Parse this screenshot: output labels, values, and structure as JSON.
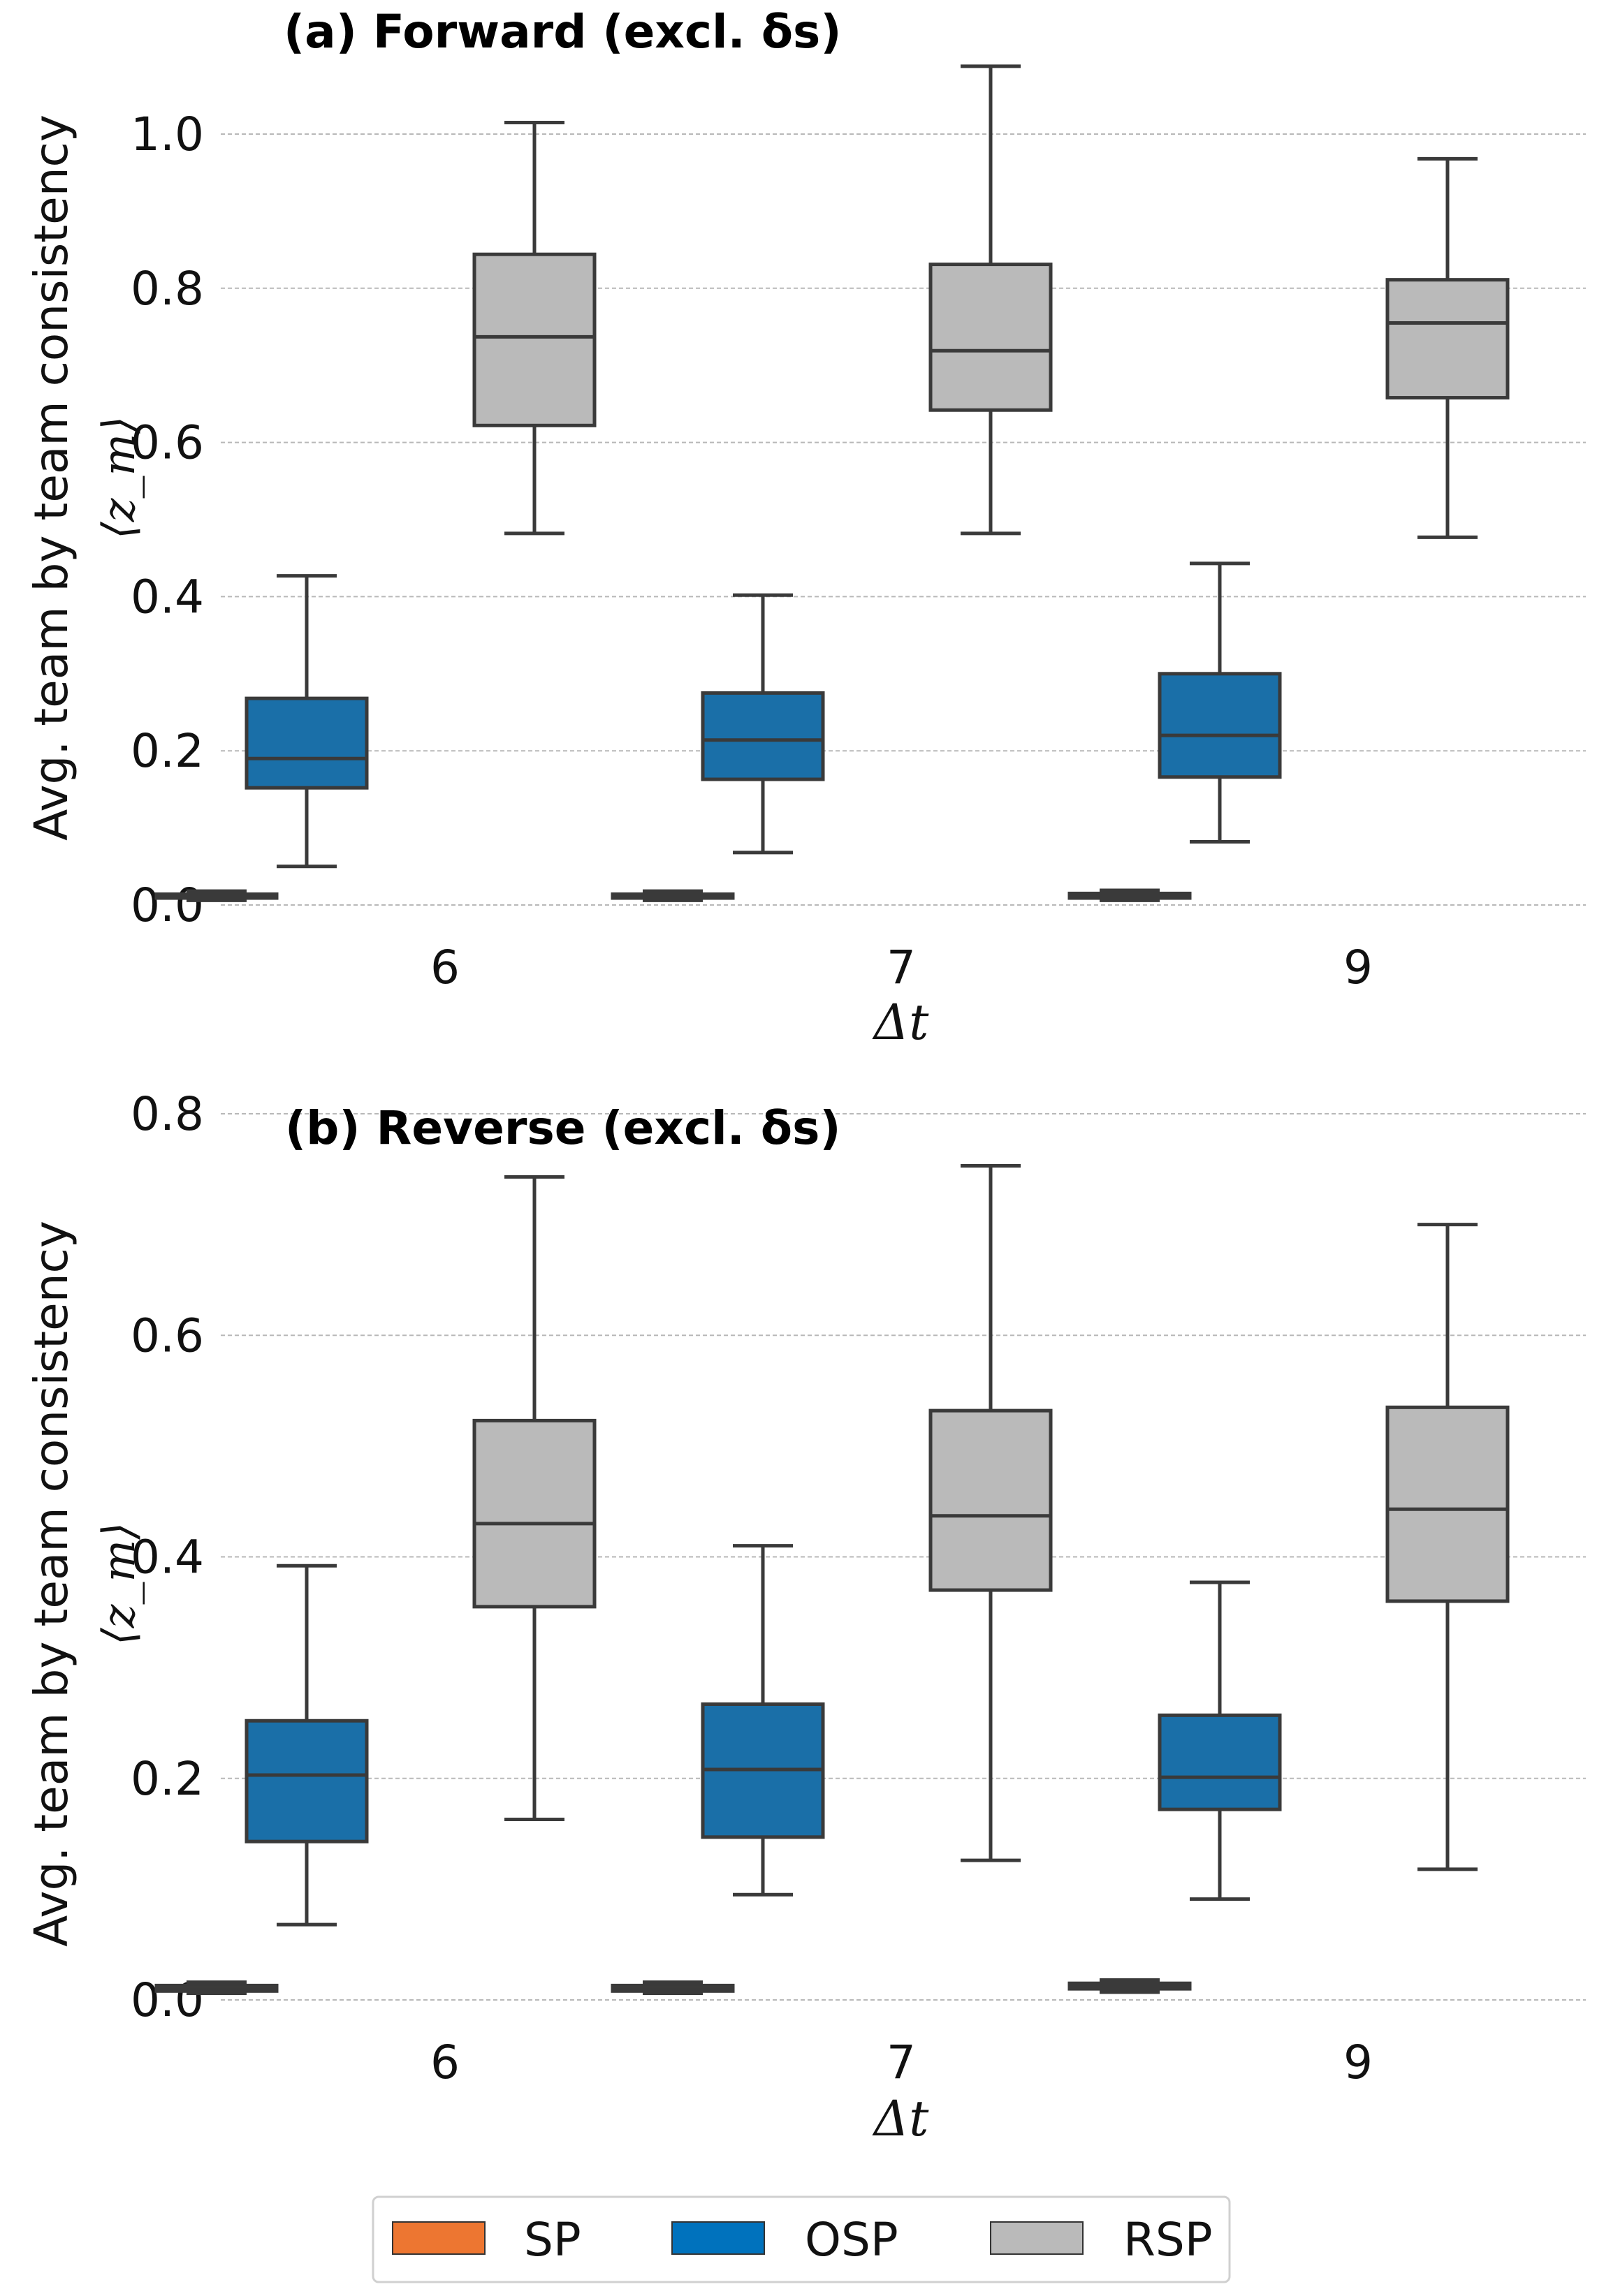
{
  "chart_data": [
    {
      "type": "box",
      "title": "(a) Forward (excl. δs)",
      "xlabel": "Δt",
      "ylabel": "Avg. team by team consistency",
      "ylabel_math": "⟨z_m⟩",
      "ylim": [
        -0.03,
        1.1
      ],
      "yticks": [
        0.0,
        0.2,
        0.4,
        0.6,
        0.8,
        1.0
      ],
      "ytick_labels": [
        "0.0",
        "0.2",
        "0.4",
        "0.6",
        "0.8",
        "1.0"
      ],
      "grid": true,
      "categories": [
        "6",
        "7",
        "9"
      ],
      "series": [
        {
          "name": "SP",
          "color": "#ed7631",
          "boxes": [
            {
              "whislo": 0.006,
              "q1": 0.009,
              "med": 0.011,
              "q3": 0.014,
              "whishi": 0.018
            },
            {
              "whislo": 0.006,
              "q1": 0.009,
              "med": 0.011,
              "q3": 0.014,
              "whishi": 0.018
            },
            {
              "whislo": 0.006,
              "q1": 0.009,
              "med": 0.012,
              "q3": 0.015,
              "whishi": 0.019
            }
          ]
        },
        {
          "name": "OSP",
          "color": "#1a6fa8",
          "boxes": [
            {
              "whislo": 0.05,
              "q1": 0.152,
              "med": 0.19,
              "q3": 0.268,
              "whishi": 0.427
            },
            {
              "whislo": 0.068,
              "q1": 0.163,
              "med": 0.214,
              "q3": 0.275,
              "whishi": 0.402
            },
            {
              "whislo": 0.082,
              "q1": 0.166,
              "med": 0.22,
              "q3": 0.3,
              "whishi": 0.443
            }
          ]
        },
        {
          "name": "RSP",
          "color": "#bababa",
          "boxes": [
            {
              "whislo": 0.482,
              "q1": 0.622,
              "med": 0.737,
              "q3": 0.844,
              "whishi": 1.015
            },
            {
              "whislo": 0.482,
              "q1": 0.642,
              "med": 0.719,
              "q3": 0.831,
              "whishi": 1.088
            },
            {
              "whislo": 0.477,
              "q1": 0.658,
              "med": 0.755,
              "q3": 0.811,
              "whishi": 0.968
            }
          ]
        }
      ]
    },
    {
      "type": "box",
      "title": "(b) Reverse (excl.  δs)",
      "xlabel": "Δt",
      "ylabel": "Avg. team by team consistency",
      "ylabel_math": "⟨z_m⟩",
      "ylim": [
        -0.02,
        0.8
      ],
      "yticks": [
        0.0,
        0.2,
        0.4,
        0.6,
        0.8
      ],
      "ytick_labels": [
        "0.0",
        "0.2",
        "0.4",
        "0.6",
        "0.8"
      ],
      "grid": true,
      "categories": [
        "6",
        "7",
        "9"
      ],
      "series": [
        {
          "name": "SP",
          "color": "#ed7631",
          "boxes": [
            {
              "whislo": 0.006,
              "q1": 0.008,
              "med": 0.01,
              "q3": 0.013,
              "whishi": 0.016
            },
            {
              "whislo": 0.006,
              "q1": 0.008,
              "med": 0.01,
              "q3": 0.013,
              "whishi": 0.016
            },
            {
              "whislo": 0.007,
              "q1": 0.01,
              "med": 0.012,
              "q3": 0.015,
              "whishi": 0.018
            }
          ]
        },
        {
          "name": "OSP",
          "color": "#1a6fa8",
          "boxes": [
            {
              "whislo": 0.068,
              "q1": 0.143,
              "med": 0.203,
              "q3": 0.252,
              "whishi": 0.392
            },
            {
              "whislo": 0.095,
              "q1": 0.147,
              "med": 0.208,
              "q3": 0.267,
              "whishi": 0.41
            },
            {
              "whislo": 0.091,
              "q1": 0.172,
              "med": 0.201,
              "q3": 0.257,
              "whishi": 0.377
            }
          ]
        },
        {
          "name": "RSP",
          "color": "#bababa",
          "boxes": [
            {
              "whislo": 0.163,
              "q1": 0.355,
              "med": 0.43,
              "q3": 0.523,
              "whishi": 0.743
            },
            {
              "whislo": 0.126,
              "q1": 0.37,
              "med": 0.437,
              "q3": 0.532,
              "whishi": 0.753
            },
            {
              "whislo": 0.118,
              "q1": 0.36,
              "med": 0.443,
              "q3": 0.535,
              "whishi": 0.7
            }
          ]
        }
      ]
    }
  ],
  "legend": {
    "position": "bottom-center",
    "items": [
      {
        "label": "SP",
        "color": "#ed7631"
      },
      {
        "label": "OSP",
        "color": "#0072bd"
      },
      {
        "label": "RSP",
        "color": "#bababa"
      }
    ]
  }
}
